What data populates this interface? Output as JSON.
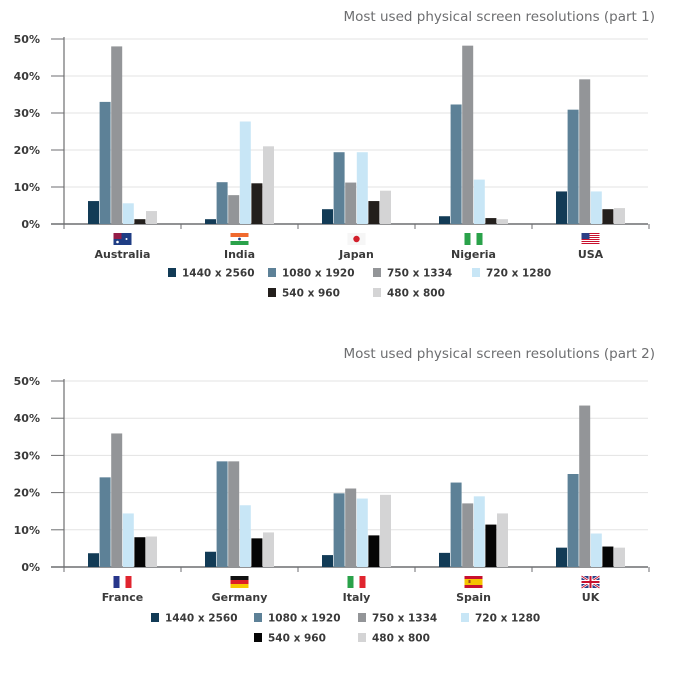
{
  "chart_data": [
    {
      "type": "bar",
      "title": "Most used physical screen resolutions (part 1)",
      "categories": [
        "Australia",
        "India",
        "Japan",
        "Nigeria",
        "USA"
      ],
      "flags": [
        "flag-australia",
        "flag-india",
        "flag-japan",
        "flag-nigeria",
        "flag-usa"
      ],
      "ylim": [
        0,
        50
      ],
      "yticks": [
        "0%",
        "10%",
        "20%",
        "30%",
        "40%",
        "50%"
      ],
      "grid": true,
      "legend_position": "bottom",
      "series": [
        {
          "name": "1440 x 2560",
          "color": "#123b56",
          "values": [
            6.2,
            1.3,
            4.0,
            2.1,
            8.8
          ]
        },
        {
          "name": "1080 x 1920",
          "color": "#5d8197",
          "values": [
            33.0,
            11.3,
            19.4,
            32.3,
            30.9
          ]
        },
        {
          "name": "750 x 1334",
          "color": "#939598",
          "values": [
            48.0,
            7.8,
            11.2,
            48.2,
            39.1
          ]
        },
        {
          "name": "720 x 1280",
          "color": "#c8e6f6",
          "values": [
            5.6,
            27.7,
            19.4,
            12.0,
            8.8
          ]
        },
        {
          "name": "540 x 960",
          "color": "#231f1c",
          "values": [
            1.3,
            11.0,
            6.2,
            1.6,
            4.0
          ]
        },
        {
          "name": "480 x 800",
          "color": "#d4d4d5",
          "values": [
            3.5,
            21.0,
            9.0,
            1.3,
            4.3
          ]
        }
      ]
    },
    {
      "type": "bar",
      "title": "Most used physical screen resolutions (part 2)",
      "categories": [
        "France",
        "Germany",
        "Italy",
        "Spain",
        "UK"
      ],
      "flags": [
        "flag-france",
        "flag-germany",
        "flag-italy",
        "flag-spain",
        "flag-uk"
      ],
      "ylim": [
        0,
        50
      ],
      "yticks": [
        "0%",
        "10%",
        "20%",
        "30%",
        "40%",
        "50%"
      ],
      "grid": true,
      "legend_position": "bottom",
      "series": [
        {
          "name": "1440 x 2560",
          "color": "#123b56",
          "values": [
            3.7,
            4.1,
            3.2,
            3.8,
            5.2
          ]
        },
        {
          "name": "1080 x 1920",
          "color": "#5d8197",
          "values": [
            24.1,
            28.4,
            19.8,
            22.7,
            25.0
          ]
        },
        {
          "name": "750 x 1334",
          "color": "#939598",
          "values": [
            35.9,
            28.4,
            21.1,
            17.1,
            43.4
          ]
        },
        {
          "name": "720 x 1280",
          "color": "#c8e6f6",
          "values": [
            14.4,
            16.6,
            18.4,
            19.0,
            9.0
          ]
        },
        {
          "name": "540 x 960",
          "color": "#050505",
          "values": [
            8.0,
            7.7,
            8.5,
            11.4,
            5.5
          ]
        },
        {
          "name": "480 x 800",
          "color": "#d4d4d5",
          "values": [
            8.2,
            9.3,
            19.4,
            14.4,
            5.2
          ]
        }
      ]
    }
  ]
}
